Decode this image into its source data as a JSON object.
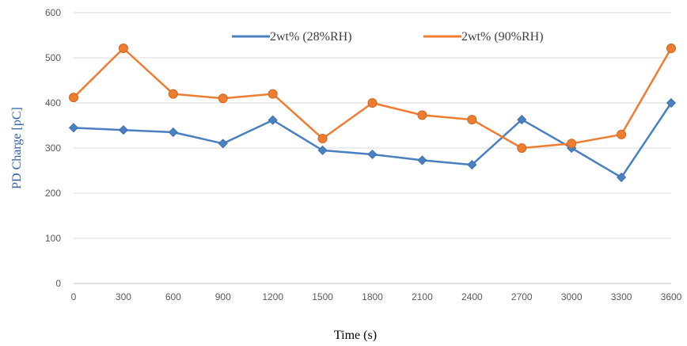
{
  "chart_data": {
    "type": "line",
    "x": [
      0,
      300,
      600,
      900,
      1200,
      1500,
      1800,
      2100,
      2400,
      2700,
      3000,
      3300,
      3600
    ],
    "series": [
      {
        "name": "2wt% (28%RH)",
        "color": "#4a7fc0",
        "marker": "diamond",
        "values": [
          345,
          340,
          335,
          310,
          362,
          295,
          286,
          273,
          263,
          363,
          300,
          235,
          400
        ]
      },
      {
        "name": "2wt% (90%RH)",
        "color": "#ee7d31",
        "marker": "circle",
        "values": [
          412,
          521,
          420,
          410,
          420,
          321,
          400,
          373,
          363,
          300,
          310,
          330,
          521
        ]
      }
    ],
    "xlabel": "Time (s)",
    "ylabel": "PD Charge [pC]",
    "ylabel_color": "#2e5fa7",
    "xlim": [
      0,
      3600
    ],
    "ylim": [
      0,
      600
    ],
    "yticks": [
      0,
      100,
      200,
      300,
      400,
      500,
      600
    ],
    "xticks": [
      "0",
      "300",
      "600",
      "900",
      "1200",
      "1500",
      "1800",
      "2100",
      "2400",
      "2700",
      "3000",
      "3300",
      "3600"
    ],
    "grid": "horizontal",
    "legend_position": "top"
  }
}
